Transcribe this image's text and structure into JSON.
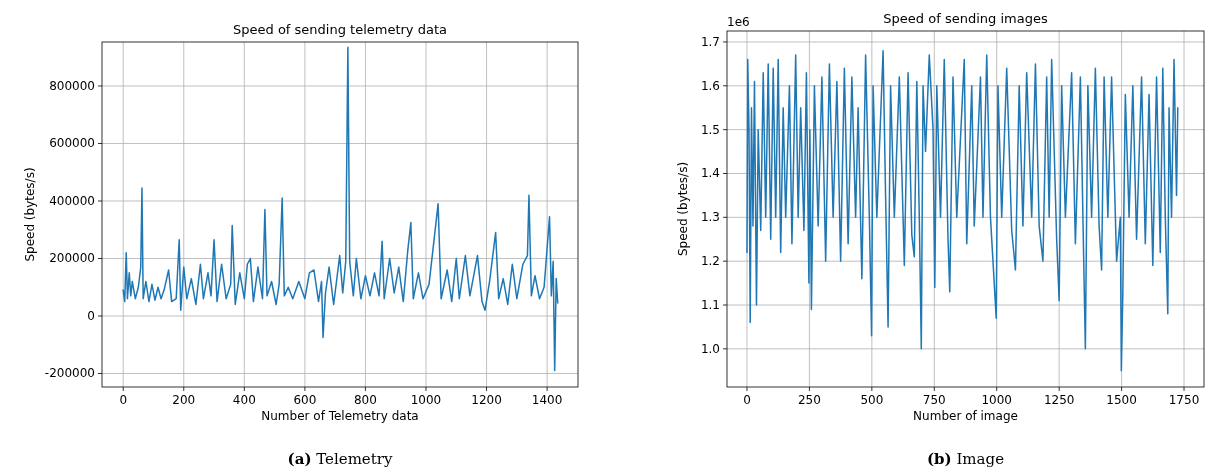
{
  "chart_data": [
    {
      "type": "line",
      "title": "Speed of sending telemetry data",
      "xlabel": "Number of Telemetry data",
      "ylabel": "Speed (bytes/s)",
      "annotations": [
        "(a) Telemetry"
      ],
      "grid": true,
      "xlim": [
        -70,
        1502
      ],
      "ylim": [
        -247000,
        953000
      ],
      "xticks": [
        0,
        200,
        400,
        600,
        800,
        1000,
        1200,
        1400
      ],
      "yticks": [
        -200000,
        0,
        200000,
        400000,
        600000,
        800000
      ],
      "series": [
        {
          "color": "#1f77b4",
          "x": [
            0,
            5,
            10,
            14,
            20,
            25,
            30,
            40,
            50,
            58,
            62,
            66,
            75,
            85,
            95,
            105,
            115,
            125,
            135,
            150,
            160,
            175,
            185,
            190,
            200,
            210,
            225,
            240,
            255,
            265,
            280,
            290,
            300,
            310,
            325,
            340,
            355,
            360,
            370,
            385,
            400,
            410,
            420,
            430,
            445,
            460,
            468,
            475,
            490,
            505,
            515,
            525,
            532,
            545,
            560,
            580,
            600,
            615,
            630,
            645,
            655,
            660,
            668,
            680,
            695,
            715,
            725,
            735,
            742,
            748,
            760,
            770,
            785,
            800,
            815,
            830,
            845,
            855,
            862,
            880,
            895,
            910,
            925,
            940,
            950,
            958,
            975,
            990,
            1010,
            1040,
            1050,
            1070,
            1085,
            1100,
            1110,
            1130,
            1145,
            1170,
            1185,
            1195,
            1210,
            1230,
            1240,
            1255,
            1270,
            1285,
            1300,
            1320,
            1335,
            1340,
            1348,
            1360,
            1375,
            1390,
            1408,
            1414,
            1420,
            1425,
            1430,
            1435
          ],
          "values": [
            90000,
            50000,
            220000,
            60000,
            150000,
            70000,
            120000,
            60000,
            100000,
            170000,
            445000,
            60000,
            120000,
            50000,
            110000,
            55000,
            100000,
            60000,
            90000,
            160000,
            50000,
            60000,
            265000,
            20000,
            170000,
            60000,
            130000,
            40000,
            180000,
            60000,
            150000,
            70000,
            265000,
            50000,
            180000,
            60000,
            110000,
            315000,
            40000,
            150000,
            60000,
            180000,
            200000,
            50000,
            170000,
            60000,
            370000,
            70000,
            120000,
            40000,
            110000,
            410000,
            70000,
            100000,
            60000,
            120000,
            60000,
            150000,
            160000,
            50000,
            120000,
            -75000,
            80000,
            170000,
            40000,
            210000,
            80000,
            190000,
            935000,
            190000,
            70000,
            200000,
            60000,
            140000,
            70000,
            150000,
            70000,
            260000,
            60000,
            200000,
            80000,
            170000,
            50000,
            230000,
            325000,
            60000,
            150000,
            60000,
            110000,
            390000,
            60000,
            160000,
            50000,
            200000,
            60000,
            210000,
            70000,
            210000,
            50000,
            20000,
            120000,
            290000,
            60000,
            130000,
            40000,
            180000,
            60000,
            180000,
            210000,
            420000,
            70000,
            140000,
            60000,
            100000,
            345000,
            70000,
            190000,
            -190000,
            130000,
            45000
          ]
        }
      ]
    },
    {
      "type": "line",
      "title": "Speed of sending images",
      "xlabel": "Number of image",
      "ylabel": "Speed (bytes/s)",
      "annotations": [
        "1e6",
        "(b) Image"
      ],
      "grid": true,
      "xlim": [
        -80,
        1830
      ],
      "ylim": [
        0.913,
        1.725
      ],
      "xticks": [
        0,
        250,
        500,
        750,
        1000,
        1250,
        1500,
        1750
      ],
      "yticks": [
        {
          "value": 1.0,
          "label": "1.0"
        },
        1.1,
        1.2,
        1.3,
        1.4,
        1.5,
        1.6,
        1.7
      ],
      "series": [
        {
          "color": "#1f77b4",
          "x": [
            0,
            3,
            8,
            13,
            18,
            24,
            30,
            38,
            45,
            55,
            65,
            75,
            85,
            95,
            105,
            115,
            125,
            135,
            145,
            155,
            170,
            180,
            195,
            205,
            215,
            228,
            238,
            248,
            252,
            258,
            270,
            285,
            300,
            315,
            330,
            345,
            360,
            375,
            390,
            405,
            420,
            435,
            445,
            460,
            475,
            490,
            499,
            505,
            520,
            545,
            555,
            565,
            575,
            590,
            610,
            625,
            630,
            645,
            660,
            670,
            680,
            690,
            698,
            705,
            715,
            730,
            745,
            752,
            760,
            775,
            790,
            805,
            812,
            825,
            840,
            870,
            880,
            900,
            910,
            935,
            945,
            960,
            975,
            998,
            1005,
            1020,
            1040,
            1060,
            1075,
            1090,
            1105,
            1120,
            1140,
            1155,
            1170,
            1185,
            1200,
            1210,
            1220,
            1240,
            1250,
            1260,
            1275,
            1300,
            1315,
            1335,
            1350,
            1355,
            1365,
            1380,
            1395,
            1410,
            1420,
            1430,
            1445,
            1460,
            1480,
            1495,
            1499,
            1505,
            1515,
            1530,
            1545,
            1560,
            1580,
            1595,
            1610,
            1625,
            1640,
            1655,
            1665,
            1675,
            1685,
            1690,
            1700,
            1710,
            1720,
            1725
          ],
          "values": [
            1.22,
            1.66,
            1.5,
            1.06,
            1.55,
            1.28,
            1.61,
            1.1,
            1.5,
            1.27,
            1.63,
            1.3,
            1.65,
            1.25,
            1.64,
            1.3,
            1.66,
            1.22,
            1.55,
            1.3,
            1.6,
            1.24,
            1.67,
            1.3,
            1.55,
            1.27,
            1.63,
            1.15,
            1.5,
            1.09,
            1.6,
            1.28,
            1.62,
            1.2,
            1.65,
            1.3,
            1.61,
            1.2,
            1.64,
            1.24,
            1.62,
            1.3,
            1.55,
            1.16,
            1.67,
            1.3,
            1.03,
            1.6,
            1.3,
            1.68,
            1.35,
            1.05,
            1.6,
            1.3,
            1.62,
            1.3,
            1.19,
            1.63,
            1.26,
            1.21,
            1.61,
            1.3,
            1.0,
            1.6,
            1.45,
            1.67,
            1.5,
            1.14,
            1.6,
            1.3,
            1.66,
            1.25,
            1.13,
            1.62,
            1.3,
            1.66,
            1.24,
            1.6,
            1.28,
            1.62,
            1.3,
            1.67,
            1.3,
            1.07,
            1.6,
            1.3,
            1.64,
            1.27,
            1.18,
            1.6,
            1.28,
            1.63,
            1.3,
            1.65,
            1.28,
            1.2,
            1.62,
            1.3,
            1.66,
            1.25,
            1.11,
            1.6,
            1.3,
            1.63,
            1.24,
            1.62,
            1.15,
            1.0,
            1.6,
            1.3,
            1.64,
            1.28,
            1.18,
            1.62,
            1.3,
            1.62,
            1.2,
            1.3,
            0.95,
            1.13,
            1.58,
            1.3,
            1.6,
            1.25,
            1.62,
            1.24,
            1.58,
            1.19,
            1.62,
            1.22,
            1.64,
            1.3,
            1.08,
            1.55,
            1.3,
            1.66,
            1.35,
            1.55
          ]
        }
      ]
    }
  ]
}
